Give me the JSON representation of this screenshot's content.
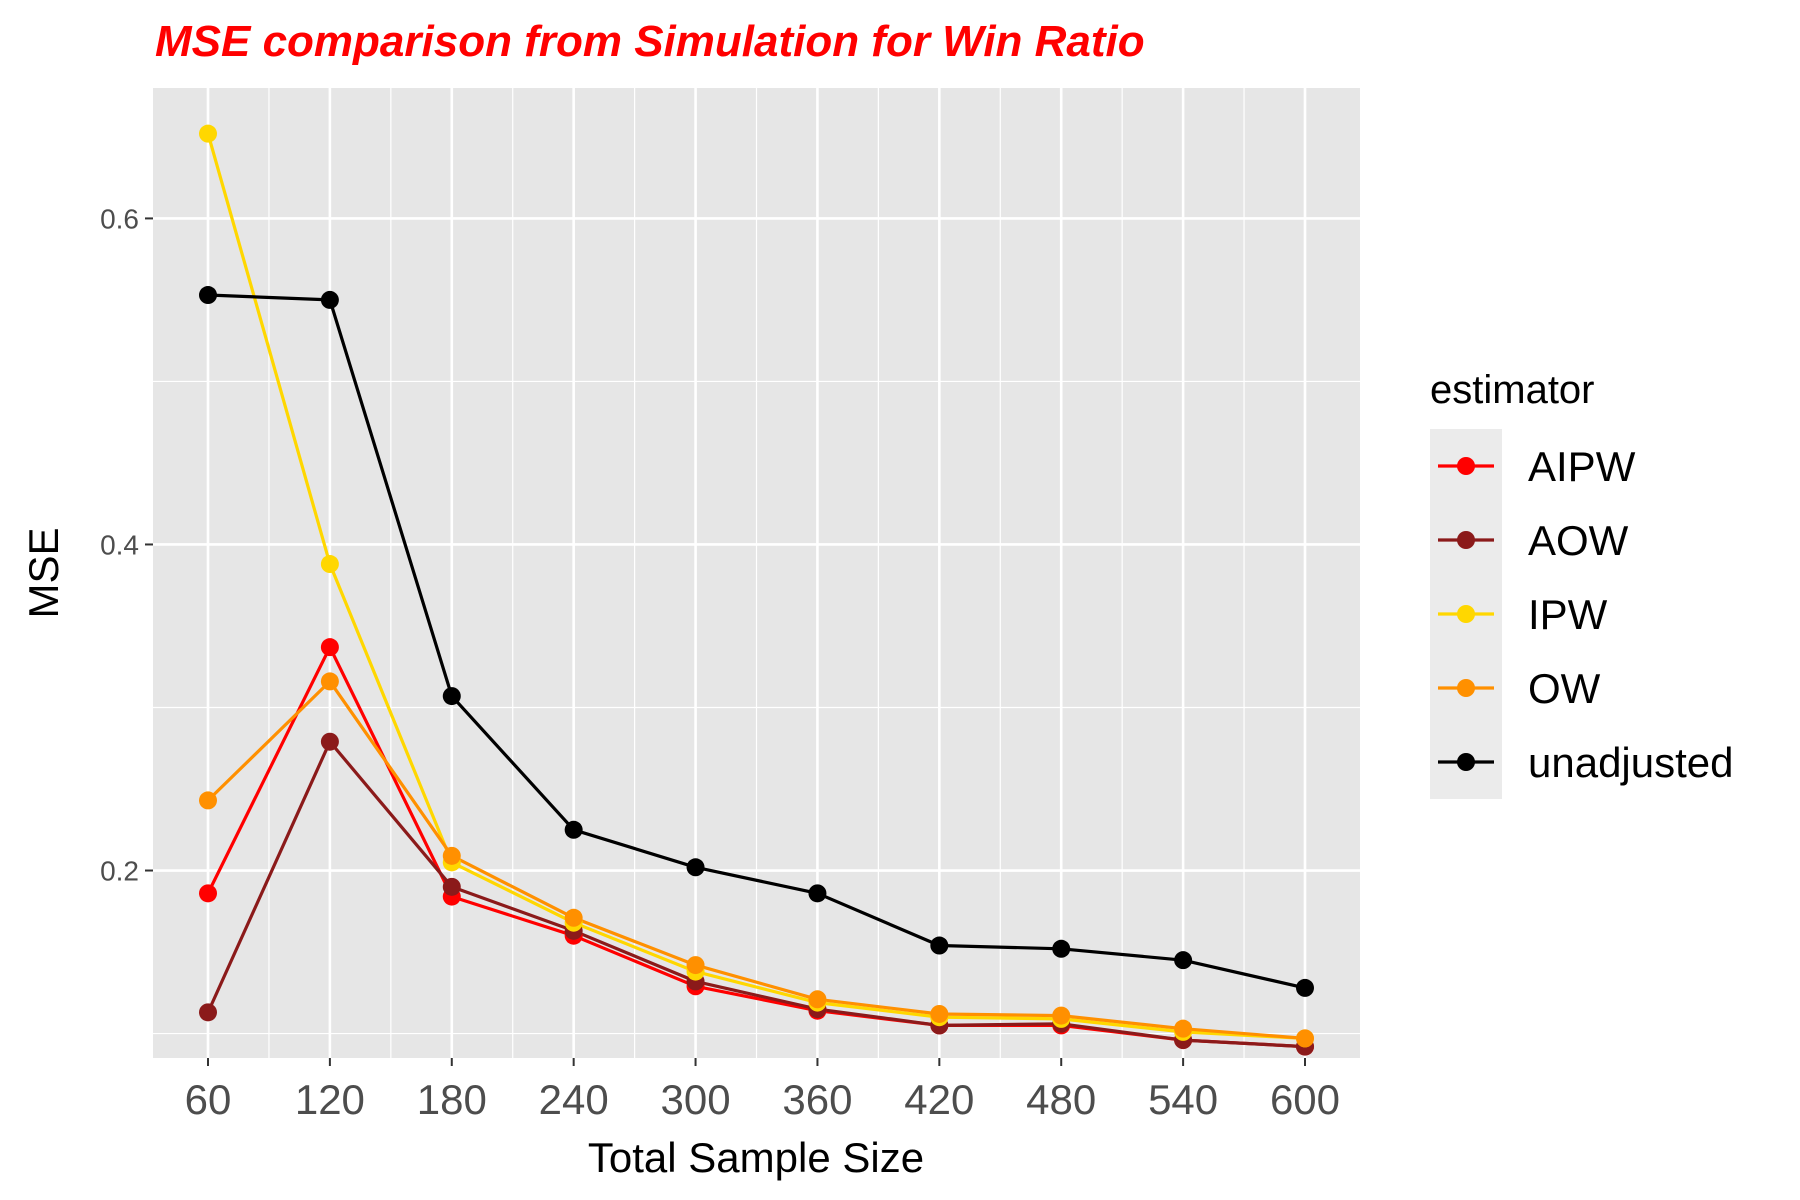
{
  "chart_data": {
    "type": "line",
    "title": "MSE comparison from Simulation for Win Ratio",
    "title_color": "#ff0000",
    "xlabel": "Total Sample Size",
    "ylabel": "MSE",
    "x": [
      60,
      120,
      180,
      240,
      300,
      360,
      420,
      480,
      540,
      600
    ],
    "x_tick_labels": [
      "60",
      "120",
      "180",
      "240",
      "300",
      "360",
      "420",
      "480",
      "540",
      "600"
    ],
    "y_ticks": [
      0.2,
      0.4,
      0.6
    ],
    "y_tick_labels": [
      "0.2",
      "0.4",
      "0.6"
    ],
    "ylim": [
      0.085,
      0.68
    ],
    "grid": true,
    "panel_background": "#e6e6e6",
    "legend_title": "estimator",
    "legend_position": "right",
    "series": [
      {
        "name": "AIPW",
        "color": "#ff0000",
        "values": [
          0.186,
          0.337,
          0.184,
          0.16,
          0.129,
          0.114,
          0.105,
          0.105,
          0.096,
          0.092
        ]
      },
      {
        "name": "AOW",
        "color": "#8b1a1a",
        "values": [
          0.113,
          0.279,
          0.19,
          0.163,
          0.132,
          0.115,
          0.105,
          0.106,
          0.096,
          0.092
        ]
      },
      {
        "name": "IPW",
        "color": "#ffd700",
        "values": [
          0.652,
          0.388,
          0.205,
          0.168,
          0.138,
          0.119,
          0.11,
          0.109,
          0.101,
          0.097
        ]
      },
      {
        "name": "OW",
        "color": "#ff9000",
        "values": [
          0.243,
          0.316,
          0.209,
          0.171,
          0.142,
          0.121,
          0.112,
          0.111,
          0.103,
          0.097
        ]
      },
      {
        "name": "unadjusted",
        "color": "#000000",
        "values": [
          0.553,
          0.55,
          0.307,
          0.225,
          0.202,
          0.186,
          0.154,
          0.152,
          0.145,
          0.128
        ]
      }
    ]
  }
}
